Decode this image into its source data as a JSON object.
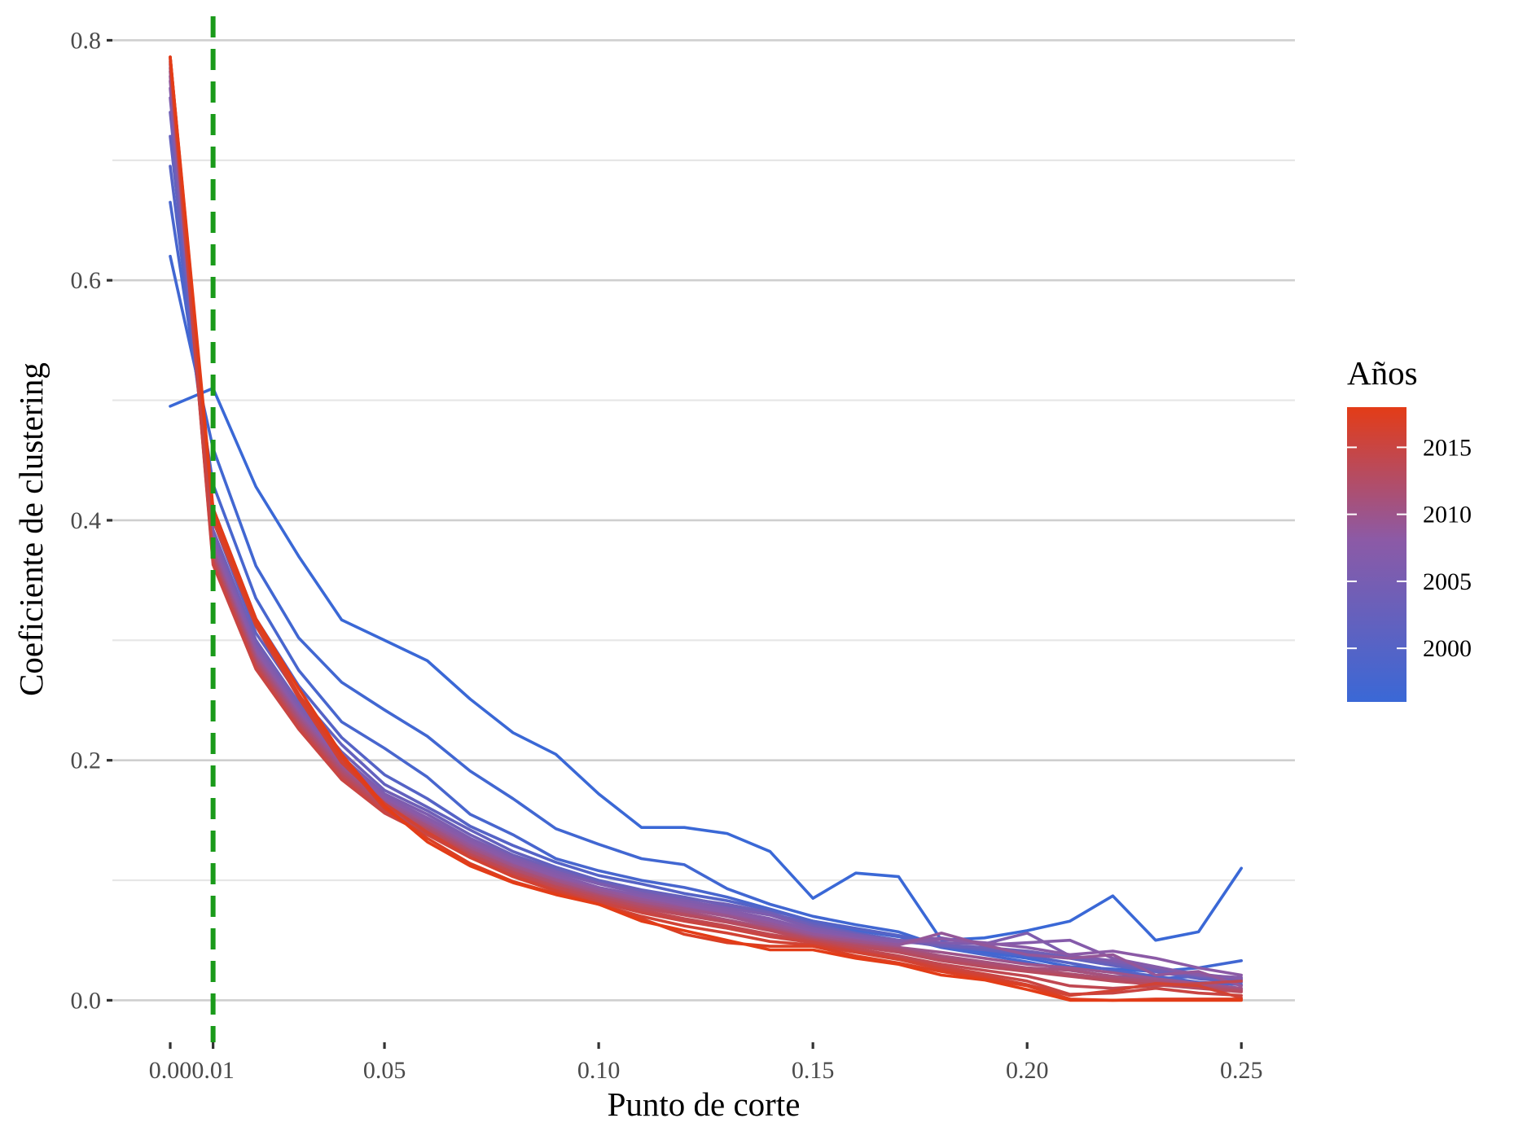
{
  "chart_data": {
    "type": "line",
    "title": "",
    "xlabel": "Punto de corte",
    "ylabel": "Coeficiente de clustering",
    "xlim": [
      -0.0135,
      0.2625
    ],
    "ylim": [
      -0.035,
      0.82
    ],
    "x_ticks": [
      0.0,
      0.01,
      0.05,
      0.1,
      0.15,
      0.2,
      0.25
    ],
    "x_tick_labels": [
      "0.00",
      "0.01",
      "0.05",
      "0.10",
      "0.15",
      "0.20",
      "0.25"
    ],
    "y_ticks": [
      0.0,
      0.2,
      0.4,
      0.6,
      0.8
    ],
    "y_tick_labels": [
      "0.0",
      "0.2",
      "0.4",
      "0.6",
      "0.8"
    ],
    "y_minor_ticks": [
      0.1,
      0.3,
      0.5,
      0.7
    ],
    "grid": true,
    "reference_line": {
      "x": 0.01,
      "style": "dashed",
      "color": "#1a9a1a"
    },
    "legend": {
      "title": "Años",
      "placement": "right",
      "type": "colorbar",
      "range": [
        1996,
        2018
      ],
      "ticks": [
        2000,
        2005,
        2010,
        2015
      ],
      "color_low": "#3a68d6",
      "color_mid": "#8c5aa6",
      "color_high": "#e33c17"
    },
    "x": [
      0.0,
      0.01,
      0.02,
      0.03,
      0.04,
      0.05,
      0.06,
      0.07,
      0.08,
      0.09,
      0.1,
      0.11,
      0.12,
      0.13,
      0.14,
      0.15,
      0.16,
      0.17,
      0.18,
      0.19,
      0.2,
      0.21,
      0.22,
      0.23,
      0.24,
      0.25
    ],
    "series": [
      {
        "year": 1996,
        "values": [
          0.495,
          0.51,
          0.428,
          0.37,
          0.317,
          0.3,
          0.283,
          0.251,
          0.223,
          0.205,
          0.172,
          0.144,
          0.144,
          0.139,
          0.124,
          0.085,
          0.106,
          0.103,
          0.05,
          0.052,
          0.058,
          0.066,
          0.087,
          0.05,
          0.057,
          0.11
        ]
      },
      {
        "year": 1997,
        "values": [
          0.62,
          0.46,
          0.362,
          0.302,
          0.265,
          0.242,
          0.22,
          0.191,
          0.168,
          0.143,
          0.13,
          0.118,
          0.113,
          0.093,
          0.08,
          0.07,
          0.063,
          0.057,
          0.045,
          0.04,
          0.035,
          0.028,
          0.026,
          0.024,
          0.027,
          0.033
        ]
      },
      {
        "year": 1998,
        "values": [
          0.665,
          0.43,
          0.335,
          0.275,
          0.232,
          0.21,
          0.186,
          0.155,
          0.138,
          0.118,
          0.108,
          0.1,
          0.094,
          0.086,
          0.076,
          0.066,
          0.058,
          0.053,
          0.044,
          0.038,
          0.032,
          0.025,
          0.02,
          0.018,
          0.02,
          0.017
        ]
      },
      {
        "year": 2000,
        "values": [
          0.695,
          0.41,
          0.318,
          0.262,
          0.219,
          0.188,
          0.168,
          0.145,
          0.129,
          0.115,
          0.104,
          0.097,
          0.089,
          0.083,
          0.075,
          0.066,
          0.06,
          0.054,
          0.046,
          0.042,
          0.037,
          0.031,
          0.025,
          0.02,
          0.015,
          0.013
        ]
      },
      {
        "year": 2002,
        "values": [
          0.72,
          0.4,
          0.306,
          0.254,
          0.213,
          0.18,
          0.161,
          0.142,
          0.124,
          0.111,
          0.1,
          0.092,
          0.086,
          0.079,
          0.072,
          0.064,
          0.056,
          0.05,
          0.045,
          0.042,
          0.04,
          0.035,
          0.029,
          0.024,
          0.018,
          0.015
        ]
      },
      {
        "year": 2004,
        "values": [
          0.74,
          0.392,
          0.3,
          0.248,
          0.207,
          0.175,
          0.158,
          0.138,
          0.121,
          0.109,
          0.098,
          0.091,
          0.085,
          0.08,
          0.073,
          0.062,
          0.055,
          0.049,
          0.046,
          0.044,
          0.041,
          0.036,
          0.031,
          0.025,
          0.02,
          0.017
        ]
      },
      {
        "year": 2006,
        "values": [
          0.752,
          0.386,
          0.296,
          0.245,
          0.203,
          0.172,
          0.155,
          0.135,
          0.119,
          0.107,
          0.097,
          0.089,
          0.083,
          0.077,
          0.071,
          0.06,
          0.054,
          0.05,
          0.048,
          0.047,
          0.056,
          0.037,
          0.033,
          0.027,
          0.022,
          0.018
        ]
      },
      {
        "year": 2007,
        "values": [
          0.76,
          0.382,
          0.293,
          0.242,
          0.201,
          0.17,
          0.152,
          0.133,
          0.117,
          0.105,
          0.094,
          0.087,
          0.081,
          0.075,
          0.068,
          0.058,
          0.052,
          0.049,
          0.052,
          0.046,
          0.048,
          0.05,
          0.035,
          0.028,
          0.021,
          0.019
        ]
      },
      {
        "year": 2008,
        "values": [
          0.766,
          0.379,
          0.29,
          0.24,
          0.198,
          0.168,
          0.15,
          0.131,
          0.115,
          0.103,
          0.093,
          0.085,
          0.079,
          0.073,
          0.066,
          0.056,
          0.051,
          0.047,
          0.051,
          0.048,
          0.044,
          0.038,
          0.041,
          0.035,
          0.027,
          0.021
        ]
      },
      {
        "year": 2009,
        "values": [
          0.77,
          0.376,
          0.288,
          0.238,
          0.196,
          0.166,
          0.148,
          0.129,
          0.113,
          0.101,
          0.092,
          0.084,
          0.077,
          0.071,
          0.064,
          0.055,
          0.05,
          0.046,
          0.056,
          0.046,
          0.038,
          0.035,
          0.038,
          0.021,
          0.024,
          0.012
        ]
      },
      {
        "year": 2010,
        "values": [
          0.774,
          0.373,
          0.286,
          0.236,
          0.194,
          0.165,
          0.146,
          0.127,
          0.112,
          0.1,
          0.09,
          0.082,
          0.076,
          0.07,
          0.062,
          0.053,
          0.049,
          0.044,
          0.04,
          0.035,
          0.03,
          0.027,
          0.023,
          0.018,
          0.014,
          0.01
        ]
      },
      {
        "year": 2011,
        "values": [
          0.777,
          0.371,
          0.284,
          0.234,
          0.192,
          0.163,
          0.145,
          0.125,
          0.11,
          0.098,
          0.088,
          0.08,
          0.074,
          0.067,
          0.06,
          0.052,
          0.047,
          0.043,
          0.037,
          0.032,
          0.027,
          0.025,
          0.02,
          0.016,
          0.012,
          0.009
        ]
      },
      {
        "year": 2012,
        "values": [
          0.78,
          0.369,
          0.282,
          0.232,
          0.19,
          0.162,
          0.143,
          0.124,
          0.109,
          0.097,
          0.087,
          0.079,
          0.072,
          0.066,
          0.059,
          0.051,
          0.046,
          0.042,
          0.035,
          0.03,
          0.026,
          0.022,
          0.018,
          0.015,
          0.011,
          0.008
        ]
      },
      {
        "year": 2013,
        "values": [
          0.782,
          0.367,
          0.28,
          0.23,
          0.188,
          0.16,
          0.142,
          0.122,
          0.107,
          0.095,
          0.086,
          0.077,
          0.071,
          0.065,
          0.058,
          0.05,
          0.045,
          0.04,
          0.033,
          0.028,
          0.024,
          0.02,
          0.016,
          0.013,
          0.01,
          0.007
        ]
      },
      {
        "year": 2014,
        "values": [
          0.784,
          0.365,
          0.278,
          0.228,
          0.186,
          0.158,
          0.14,
          0.121,
          0.106,
          0.094,
          0.084,
          0.075,
          0.068,
          0.062,
          0.055,
          0.049,
          0.043,
          0.037,
          0.03,
          0.025,
          0.02,
          0.012,
          0.01,
          0.012,
          0.014,
          0.016
        ]
      },
      {
        "year": 2015,
        "values": [
          0.786,
          0.363,
          0.276,
          0.226,
          0.184,
          0.156,
          0.138,
          0.119,
          0.104,
          0.092,
          0.082,
          0.073,
          0.066,
          0.06,
          0.053,
          0.048,
          0.041,
          0.035,
          0.028,
          0.022,
          0.016,
          0.005,
          0.006,
          0.01,
          0.006,
          0.004
        ]
      },
      {
        "year": 2016,
        "values": [
          0.786,
          0.4,
          0.312,
          0.252,
          0.198,
          0.164,
          0.14,
          0.119,
          0.103,
          0.091,
          0.08,
          0.07,
          0.062,
          0.056,
          0.049,
          0.046,
          0.04,
          0.034,
          0.026,
          0.02,
          0.013,
          0.004,
          0.008,
          0.014,
          0.012,
          0.002
        ]
      },
      {
        "year": 2017,
        "values": [
          0.786,
          0.405,
          0.315,
          0.255,
          0.202,
          0.16,
          0.135,
          0.114,
          0.099,
          0.089,
          0.08,
          0.068,
          0.055,
          0.048,
          0.045,
          0.045,
          0.037,
          0.031,
          0.024,
          0.018,
          0.012,
          0.001,
          0.0,
          0.001,
          0.001,
          0.001
        ]
      },
      {
        "year": 2018,
        "values": [
          0.786,
          0.41,
          0.318,
          0.26,
          0.205,
          0.162,
          0.132,
          0.112,
          0.098,
          0.088,
          0.08,
          0.066,
          0.058,
          0.05,
          0.042,
          0.042,
          0.035,
          0.03,
          0.021,
          0.017,
          0.009,
          0.0,
          0.0,
          0.0,
          0.0,
          0.0
        ]
      }
    ]
  }
}
